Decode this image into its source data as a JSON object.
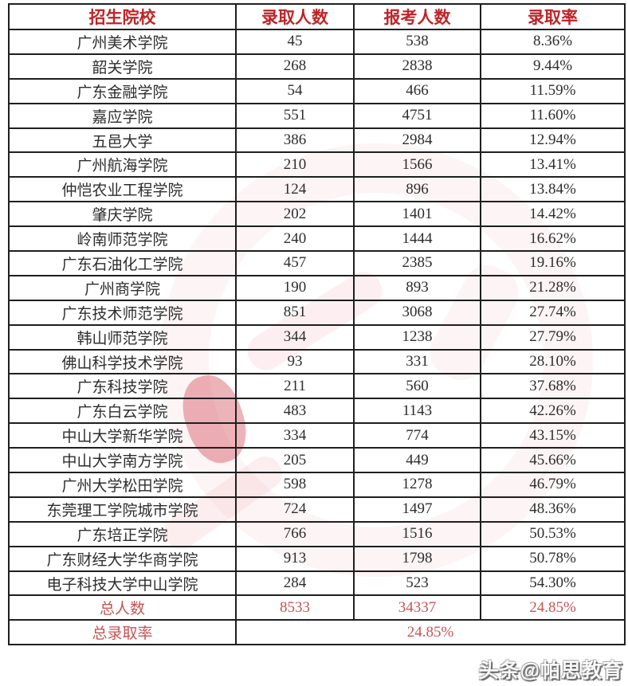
{
  "table": {
    "headers": [
      "招生院校",
      "录取人数",
      "报考人数",
      "录取率"
    ],
    "rows": [
      {
        "name": "广州美术学院",
        "admitted": "45",
        "applicants": "538",
        "rate": "8.36%"
      },
      {
        "name": "韶关学院",
        "admitted": "268",
        "applicants": "2838",
        "rate": "9.44%"
      },
      {
        "name": "广东金融学院",
        "admitted": "54",
        "applicants": "466",
        "rate": "11.59%"
      },
      {
        "name": "嘉应学院",
        "admitted": "551",
        "applicants": "4751",
        "rate": "11.60%"
      },
      {
        "name": "五邑大学",
        "admitted": "386",
        "applicants": "2984",
        "rate": "12.94%"
      },
      {
        "name": "广州航海学院",
        "admitted": "210",
        "applicants": "1566",
        "rate": "13.41%"
      },
      {
        "name": "仲恺农业工程学院",
        "admitted": "124",
        "applicants": "896",
        "rate": "13.84%"
      },
      {
        "name": "肇庆学院",
        "admitted": "202",
        "applicants": "1401",
        "rate": "14.42%"
      },
      {
        "name": "岭南师范学院",
        "admitted": "240",
        "applicants": "1444",
        "rate": "16.62%"
      },
      {
        "name": "广东石油化工学院",
        "admitted": "457",
        "applicants": "2385",
        "rate": "19.16%"
      },
      {
        "name": "广州商学院",
        "admitted": "190",
        "applicants": "893",
        "rate": "21.28%"
      },
      {
        "name": "广东技术师范学院",
        "admitted": "851",
        "applicants": "3068",
        "rate": "27.74%"
      },
      {
        "name": "韩山师范学院",
        "admitted": "344",
        "applicants": "1238",
        "rate": "27.79%"
      },
      {
        "name": "佛山科学技术学院",
        "admitted": "93",
        "applicants": "331",
        "rate": "28.10%"
      },
      {
        "name": "广东科技学院",
        "admitted": "211",
        "applicants": "560",
        "rate": "37.68%"
      },
      {
        "name": "广东白云学院",
        "admitted": "483",
        "applicants": "1143",
        "rate": "42.26%"
      },
      {
        "name": "中山大学新华学院",
        "admitted": "334",
        "applicants": "774",
        "rate": "43.15%"
      },
      {
        "name": "中山大学南方学院",
        "admitted": "205",
        "applicants": "449",
        "rate": "45.66%"
      },
      {
        "name": "广州大学松田学院",
        "admitted": "598",
        "applicants": "1278",
        "rate": "46.79%"
      },
      {
        "name": "东莞理工学院城市学院",
        "admitted": "724",
        "applicants": "1497",
        "rate": "48.36%"
      },
      {
        "name": "广东培正学院",
        "admitted": "766",
        "applicants": "1516",
        "rate": "50.53%"
      },
      {
        "name": "广东财经大学华商学院",
        "admitted": "913",
        "applicants": "1798",
        "rate": "50.78%"
      },
      {
        "name": "电子科技大学中山学院",
        "admitted": "284",
        "applicants": "523",
        "rate": "54.30%"
      }
    ],
    "totals": {
      "label": "总人数",
      "admitted": "8533",
      "applicants": "34337",
      "rate": "24.85%"
    },
    "total_rate": {
      "label": "总录取率",
      "value": "24.85%"
    }
  },
  "watermark": {
    "byline": "头条@帕思教育"
  },
  "colors": {
    "header_red": "#bf2428",
    "totals_red": "#c75454",
    "body_text": "#2d2d2d",
    "border": "#1f1f1f",
    "watermark_pink": "#f2a8b0",
    "watermark_red": "#ce3a46"
  }
}
